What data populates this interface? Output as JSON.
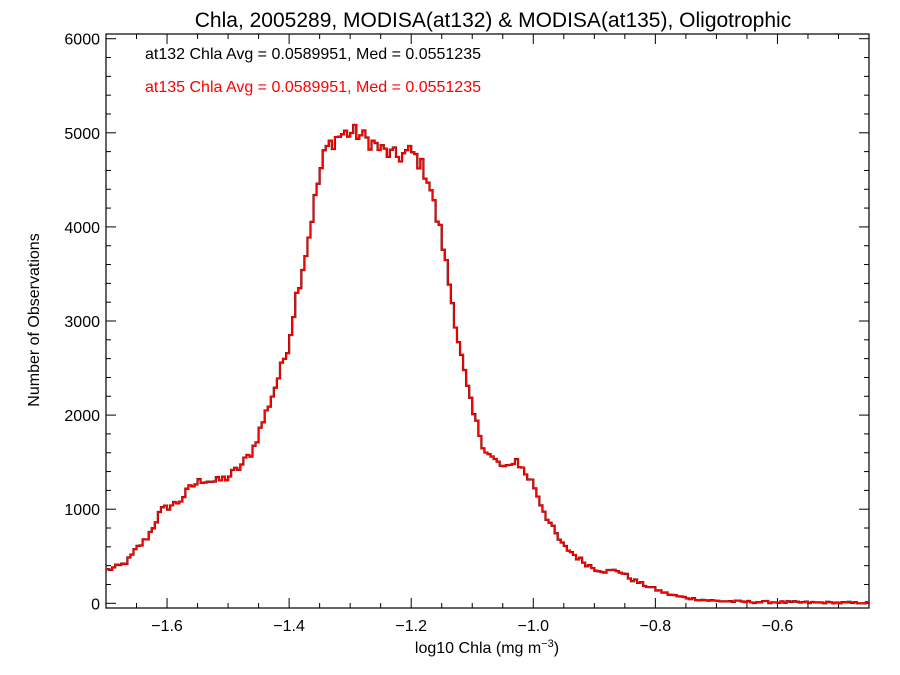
{
  "chart_data": {
    "type": "histogram",
    "title": "Chla, 2005289, MODISA(at132) & MODISA(at135), Oligotrophic",
    "xlabel": {
      "main": "log10 Chla (mg m",
      "sup": "−3",
      "close": ")"
    },
    "ylabel": "Number of Observations",
    "xlim": [
      -1.7,
      -0.45
    ],
    "ylim": [
      -50,
      6050
    ],
    "x_ticks": [
      -1.6,
      -1.4,
      -1.2,
      -1.0,
      -0.8,
      -0.6
    ],
    "x_tick_labels": [
      "−1.6",
      "−1.4",
      "−1.2",
      "−1.0",
      "−0.8",
      "−0.6"
    ],
    "y_ticks": [
      0,
      1000,
      2000,
      3000,
      4000,
      5000,
      6000
    ],
    "y_tick_labels": [
      "0",
      "1000",
      "2000",
      "3000",
      "4000",
      "5000",
      "6000"
    ],
    "annotations": [
      {
        "text": "at132 Chla Avg = 0.0589951, Med = 0.0551235",
        "color": "#000000"
      },
      {
        "text": "at135 Chla Avg = 0.0589951, Med = 0.0551235",
        "color": "#ff0000"
      }
    ],
    "series": [
      {
        "color": "#000000"
      },
      {
        "color": "#ff0000"
      }
    ],
    "bin_width": 0.005,
    "x": [
      -1.7,
      -1.69,
      -1.68,
      -1.67,
      -1.66,
      -1.65,
      -1.64,
      -1.63,
      -1.62,
      -1.61,
      -1.6,
      -1.58,
      -1.56,
      -1.54,
      -1.52,
      -1.5,
      -1.48,
      -1.46,
      -1.44,
      -1.42,
      -1.41,
      -1.4,
      -1.39,
      -1.38,
      -1.37,
      -1.36,
      -1.35,
      -1.34,
      -1.33,
      -1.32,
      -1.31,
      -1.3,
      -1.29,
      -1.28,
      -1.27,
      -1.26,
      -1.25,
      -1.24,
      -1.23,
      -1.22,
      -1.21,
      -1.2,
      -1.19,
      -1.18,
      -1.17,
      -1.16,
      -1.15,
      -1.14,
      -1.13,
      -1.12,
      -1.11,
      -1.1,
      -1.09,
      -1.08,
      -1.07,
      -1.06,
      -1.05,
      -1.04,
      -1.03,
      -1.02,
      -1.01,
      -1.0,
      -0.99,
      -0.98,
      -0.97,
      -0.96,
      -0.95,
      -0.94,
      -0.93,
      -0.92,
      -0.9,
      -0.88,
      -0.86,
      -0.84,
      -0.82,
      -0.8,
      -0.78,
      -0.76,
      -0.74,
      -0.72,
      -0.7,
      -0.65,
      -0.6,
      -0.55,
      -0.5,
      -0.45
    ],
    "y": [
      350,
      370,
      390,
      420,
      480,
      580,
      640,
      720,
      850,
      980,
      1020,
      1080,
      1240,
      1320,
      1290,
      1340,
      1450,
      1620,
      1980,
      2350,
      2550,
      2780,
      3200,
      3500,
      3800,
      4200,
      4550,
      4820,
      4900,
      4960,
      4990,
      5000,
      5000,
      4960,
      4920,
      4880,
      4820,
      4790,
      4760,
      4740,
      4780,
      4800,
      4720,
      4620,
      4480,
      4150,
      3900,
      3500,
      3100,
      2700,
      2350,
      2050,
      1850,
      1650,
      1560,
      1500,
      1450,
      1420,
      1550,
      1450,
      1350,
      1280,
      1100,
      950,
      820,
      700,
      600,
      560,
      500,
      450,
      370,
      340,
      350,
      260,
      200,
      150,
      100,
      70,
      50,
      35,
      25,
      15,
      12,
      8,
      5,
      3
    ],
    "grid": false,
    "legend": "none"
  }
}
